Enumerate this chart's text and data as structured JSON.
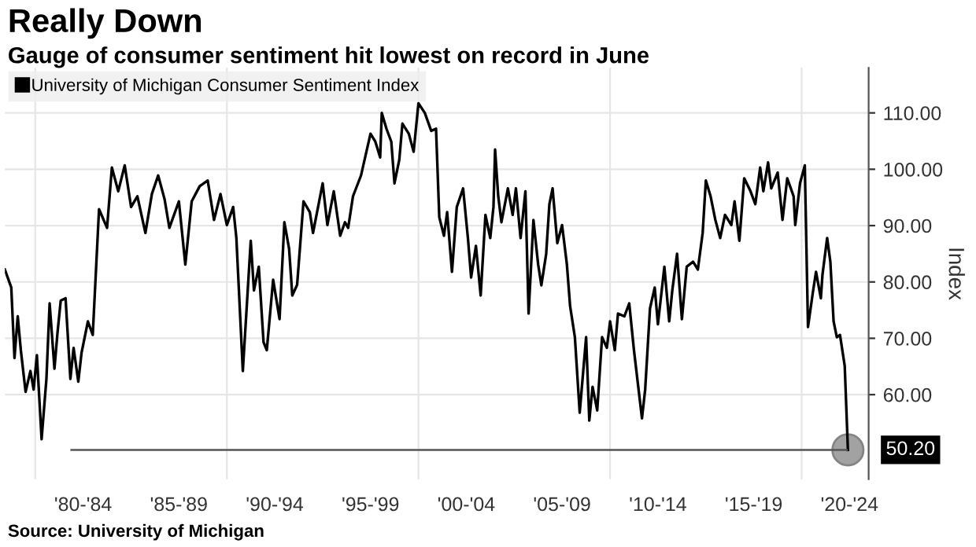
{
  "chart_data": {
    "type": "line",
    "title": "Really Down",
    "subtitle": "Gauge of consumer sentiment hit lowest on record in June",
    "ylabel": "Index",
    "annotations": [
      "Source: University of Michigan",
      {
        "text": "50.20",
        "x": "2022-06",
        "y": 50.2
      }
    ],
    "x": [
      "1978-06",
      "1978-10",
      "1978-12",
      "1979-02",
      "1979-04",
      "1979-07",
      "1979-10",
      "1979-12",
      "1980-02",
      "1980-05",
      "1980-08",
      "1980-10",
      "1981-01",
      "1981-03",
      "1981-05",
      "1981-08",
      "1981-11",
      "1982-01",
      "1982-04",
      "1982-06",
      "1982-10",
      "1983-01",
      "1983-05",
      "1983-10",
      "1984-01",
      "1984-05",
      "1984-09",
      "1985-01",
      "1985-05",
      "1985-10",
      "1986-02",
      "1986-06",
      "1986-10",
      "1987-01",
      "1987-07",
      "1987-11",
      "1988-03",
      "1988-08",
      "1989-01",
      "1989-05",
      "1989-09",
      "1990-01",
      "1990-05",
      "1990-07",
      "1990-11",
      "1991-04",
      "1991-06",
      "1991-09",
      "1991-12",
      "1992-02",
      "1992-06",
      "1992-10",
      "1993-01",
      "1993-04",
      "1993-06",
      "1993-09",
      "1994-01",
      "1994-05",
      "1994-07",
      "1995-01",
      "1995-04",
      "1995-08",
      "1995-12",
      "1996-03",
      "1996-05",
      "1996-08",
      "1997-01",
      "1997-07",
      "1997-10",
      "1998-01",
      "1998-02",
      "1998-05",
      "1998-08",
      "1998-10",
      "1999-01",
      "1999-03",
      "1999-07",
      "1999-10",
      "2000-01",
      "2000-05",
      "2000-09",
      "2000-12",
      "2001-02",
      "2001-05",
      "2001-07",
      "2001-10",
      "2002-01",
      "2002-05",
      "2002-08",
      "2002-10",
      "2003-01",
      "2003-04",
      "2003-07",
      "2003-10",
      "2003-12",
      "2004-01",
      "2004-03",
      "2004-05",
      "2004-09",
      "2004-12",
      "2005-02",
      "2005-05",
      "2005-08",
      "2005-10",
      "2006-01",
      "2006-04",
      "2006-06",
      "2006-09",
      "2006-11",
      "2007-01",
      "2007-04",
      "2007-07",
      "2007-10",
      "2007-12",
      "2008-03",
      "2008-06",
      "2008-10",
      "2008-12",
      "2009-02",
      "2009-05",
      "2009-08",
      "2009-11",
      "2010-01",
      "2010-04",
      "2010-06",
      "2010-10",
      "2011-01",
      "2011-04",
      "2011-09",
      "2011-11",
      "2012-02",
      "2012-05",
      "2012-07",
      "2012-11",
      "2013-02",
      "2013-04",
      "2013-07",
      "2013-10",
      "2014-01",
      "2014-05",
      "2014-08",
      "2014-11",
      "2015-01",
      "2015-04",
      "2015-07",
      "2015-10",
      "2016-01",
      "2016-05",
      "2016-07",
      "2016-10",
      "2017-01",
      "2017-05",
      "2017-08",
      "2017-11",
      "2018-01",
      "2018-04",
      "2018-06",
      "2018-10",
      "2019-01",
      "2019-04",
      "2019-08",
      "2019-09",
      "2019-12",
      "2020-03",
      "2020-05",
      "2020-08",
      "2020-10",
      "2021-01",
      "2021-02",
      "2021-05",
      "2021-07",
      "2021-09",
      "2021-11",
      "2022-01",
      "2022-04",
      "2022-06"
    ],
    "series": [
      {
        "name": "University of Michigan Consumer Sentiment Index",
        "color": "#000000",
        "values": [
          82.2,
          79,
          66.5,
          73.9,
          67.9,
          60.5,
          64.2,
          60.9,
          67,
          52.1,
          62.8,
          76.2,
          64.6,
          71.1,
          76.7,
          77.1,
          62.8,
          68.3,
          62.3,
          67.4,
          73,
          70.6,
          92.9,
          89.6,
          100.3,
          96.1,
          100.7,
          93.3,
          95.2,
          88.7,
          95.6,
          98.9,
          94.7,
          89.6,
          94.3,
          83.1,
          94.3,
          97,
          98,
          91,
          95.6,
          90.1,
          93.3,
          87.8,
          64.2,
          87.3,
          78.5,
          82.7,
          69.3,
          67.9,
          80.4,
          73.4,
          90.6,
          85.9,
          77.6,
          79.5,
          94.3,
          92.4,
          88.7,
          97.5,
          90.1,
          96.1,
          88.2,
          90.6,
          89.6,
          95.2,
          98.9,
          106.3,
          104.9,
          102.1,
          110,
          107.2,
          104.9,
          97.5,
          101.7,
          108.1,
          106.3,
          103.1,
          111.7,
          110,
          106.8,
          107.2,
          91.5,
          88.2,
          92.4,
          81.8,
          93.3,
          96.6,
          87.8,
          80.8,
          86.4,
          77.6,
          91.9,
          87.8,
          93.3,
          103.5,
          95.2,
          90.6,
          96.6,
          91.9,
          96.6,
          87.8,
          96.1,
          74.4,
          91,
          83.1,
          79.4,
          85,
          93.8,
          96.6,
          86.9,
          90.1,
          83.1,
          75.7,
          70.2,
          56.8,
          70.2,
          55.4,
          61.4,
          57.2,
          70.2,
          68.3,
          73,
          67.9,
          74.4,
          73.9,
          76.2,
          67.9,
          55.8,
          60.9,
          75.3,
          79,
          72.5,
          82.7,
          73,
          78.5,
          85,
          73.4,
          82.7,
          83.6,
          82.2,
          88.7,
          98,
          95.2,
          91,
          87.8,
          91.9,
          90.1,
          94.3,
          87.3,
          98.4,
          96.1,
          93.8,
          100.3,
          96.1,
          101.2,
          96.6,
          99.4,
          91,
          98.4,
          95.2,
          90.1,
          97.5,
          100.7,
          72,
          78.1,
          81.8,
          77.1,
          81.3,
          87.8,
          83.6,
          73,
          70.2,
          70.6,
          65.1,
          50.2
        ]
      },
      {
        "type": "line",
        "x": [
          "1981-11",
          "2022-06"
        ],
        "color": "#555555",
        "values": [
          50.2,
          50.2
        ]
      }
    ],
    "xlim": [
      "1978-06",
      "2023-07"
    ],
    "xticks": [
      {
        "value": "1980-01",
        "label": null
      },
      {
        "value": "1982-07",
        "label": "'80-'84"
      },
      {
        "value": "1987-07",
        "label": "'85-'89"
      },
      {
        "value": "1990-01",
        "label": null
      },
      {
        "value": "1992-07",
        "label": "'90-'94"
      },
      {
        "value": "1997-07",
        "label": "'95-'99"
      },
      {
        "value": "2000-01",
        "label": null
      },
      {
        "value": "2002-07",
        "label": "'00-'04"
      },
      {
        "value": "2007-07",
        "label": "'05-'09"
      },
      {
        "value": "2010-01",
        "label": null
      },
      {
        "value": "2012-07",
        "label": "'10-'14"
      },
      {
        "value": "2017-07",
        "label": "'15-'19"
      },
      {
        "value": "2020-01",
        "label": null
      },
      {
        "value": "2022-07",
        "label": "'20-'24"
      }
    ],
    "ylim": [
      45,
      118
    ],
    "yticks": [
      {
        "value": 60,
        "label": "60.00"
      },
      {
        "value": 70,
        "label": "70.00"
      },
      {
        "value": 80,
        "label": "80.00"
      },
      {
        "value": 90,
        "label": "90.00"
      },
      {
        "value": 100,
        "label": "100.00"
      },
      {
        "value": 110,
        "label": "110.00"
      }
    ],
    "grid": true,
    "legend": "top left",
    "marker": "none",
    "line_style": "solid"
  }
}
